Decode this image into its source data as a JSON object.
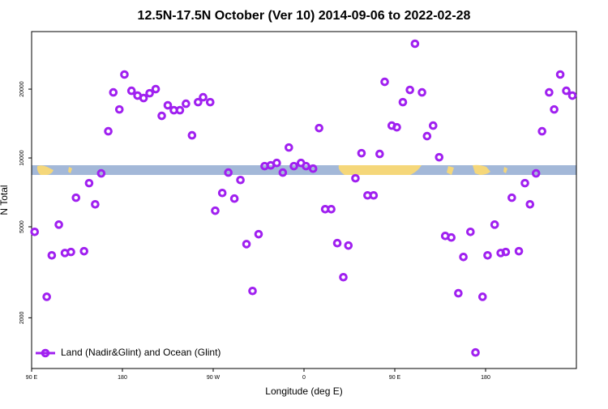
{
  "chart_data": {
    "type": "scatter",
    "title": "12.5N-17.5N October (Ver 10)   2014-09-06 to 2022-02-28",
    "xlabel": "Longitude (deg E)",
    "ylabel": "N Total",
    "xlim": [
      90,
      630
    ],
    "xticks": [
      {
        "value": 90,
        "label": "90 E"
      },
      {
        "value": 180,
        "label": "180"
      },
      {
        "value": 270,
        "label": "90 W"
      },
      {
        "value": 360,
        "label": "0"
      },
      {
        "value": 450,
        "label": "90 E"
      },
      {
        "value": 540,
        "label": "180"
      }
    ],
    "ylim": [
      1200,
      35700
    ],
    "yscale": "log",
    "yticks": [
      2000,
      5000,
      10000,
      20000
    ],
    "legend": "lower left",
    "series": [
      {
        "name": "Land (Nadir&Glint) and Ocean (Glint)",
        "color": "#a020f0",
        "x": [
          93,
          105,
          110,
          117,
          123,
          129,
          134,
          142,
          147,
          153,
          159,
          166,
          171,
          177,
          182,
          189,
          195,
          201,
          207,
          213,
          219,
          225,
          231,
          237,
          243,
          249,
          255,
          260,
          267,
          272,
          279,
          285,
          291,
          297,
          303,
          309,
          315,
          321,
          327,
          333,
          339,
          345,
          350,
          357,
          362,
          369,
          375,
          381,
          387,
          393,
          399,
          404,
          411,
          417,
          423,
          429,
          435,
          440,
          447,
          452,
          458,
          465,
          470,
          477,
          482,
          488,
          494,
          500,
          506,
          513,
          518,
          525,
          530,
          537,
          542,
          549,
          555,
          560,
          566,
          573,
          579,
          584,
          590,
          596,
          603,
          608,
          614,
          620,
          626
        ],
        "values": [
          4750,
          2470,
          3750,
          5110,
          3840,
          3880,
          6700,
          3910,
          7760,
          6270,
          8560,
          13080,
          19350,
          16300,
          23170,
          19670,
          18740,
          18280,
          19190,
          20000,
          15280,
          16990,
          16170,
          16170,
          17260,
          12560,
          17540,
          18430,
          17540,
          5880,
          7030,
          8630,
          6640,
          8010,
          4200,
          2620,
          4640,
          9210,
          9280,
          9510,
          8630,
          11110,
          9210,
          9510,
          9210,
          8980,
          13510,
          5970,
          5970,
          4240,
          3010,
          4140,
          8150,
          10490,
          6860,
          6860,
          10410,
          21520,
          13850,
          13620,
          17540,
          19840,
          31590,
          19350,
          12460,
          13850,
          10070,
          4560,
          4490,
          2560,
          3690,
          4750,
          1410,
          2470,
          3750,
          5110,
          3840,
          3880,
          6700,
          3910,
          7760,
          6270,
          8560,
          13080,
          19350,
          16300,
          23170,
          19670,
          18740
        ]
      }
    ]
  }
}
